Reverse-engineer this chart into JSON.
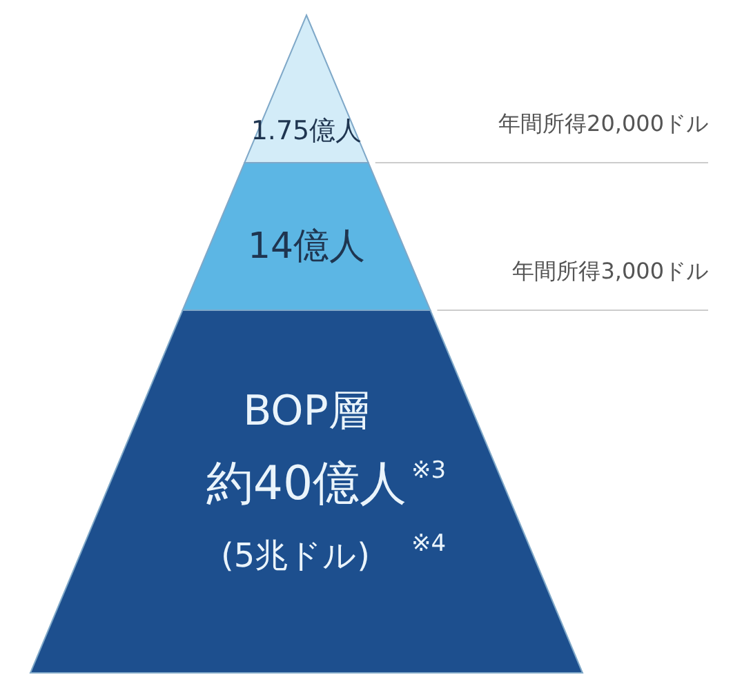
{
  "chart_data": {
    "type": "other",
    "categories": [
      null,
      null,
      "BOP層"
    ],
    "values": [
      1.75,
      14,
      40
    ],
    "value_labels": [
      "1.75億人",
      "14億人",
      "約40億人"
    ],
    "colors": [
      "#d3ecf8",
      "#5cb6e4",
      "#1d4f8e"
    ],
    "annotations": [
      "年間所得20,000ドル",
      "年間所得3,000ドル",
      "(5兆ドル)",
      "※3",
      "※4"
    ]
  }
}
